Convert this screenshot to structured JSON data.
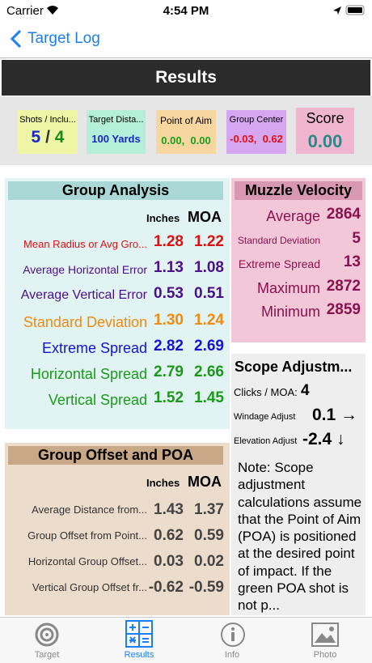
{
  "status_bar": {
    "carrier": "Carrier",
    "time": "4:54 PM"
  },
  "nav": {
    "back": "Target Log"
  },
  "header": {
    "title": "Results"
  },
  "summary": {
    "shots": {
      "label": "Shots / Inclu...",
      "shots": "5",
      "separator": "/",
      "included": "4"
    },
    "distance": {
      "label": "Target Dista...",
      "value": "100 Yards"
    },
    "point_of_aim": {
      "label": "Point of Aim",
      "value": "0.00,  0.00"
    },
    "group_center": {
      "label": "Group Center",
      "value": "-0.03,  0.62"
    },
    "score": {
      "label": "Score",
      "value": "0.00"
    }
  },
  "group_analysis": {
    "title": "Group Analysis",
    "unit_inches": "Inches",
    "unit_moa": "MOA",
    "rows": [
      {
        "label": "Mean Radius or Avg Gro...",
        "inches": "1.28",
        "moa": "1.22"
      },
      {
        "label": "Average Horizontal Error",
        "inches": "1.13",
        "moa": "1.08"
      },
      {
        "label": "Average Vertical Error",
        "inches": "0.53",
        "moa": "0.51"
      },
      {
        "label": "Standard Deviation",
        "inches": "1.30",
        "moa": "1.24"
      },
      {
        "label": "Extreme Spread",
        "inches": "2.82",
        "moa": "2.69"
      },
      {
        "label": "Horizontal Spread",
        "inches": "2.79",
        "moa": "2.66"
      },
      {
        "label": "Vertical Spread",
        "inches": "1.52",
        "moa": "1.45"
      }
    ]
  },
  "muzzle_velocity": {
    "title": "Muzzle Velocity",
    "rows": [
      {
        "label": "Average",
        "value": "2864"
      },
      {
        "label": "Standard Deviation",
        "value": "5"
      },
      {
        "label": "Extreme Spread",
        "value": "13"
      },
      {
        "label": "Maximum",
        "value": "2872"
      },
      {
        "label": "Minimum",
        "value": "2859"
      }
    ]
  },
  "scope_adjustment": {
    "title": "Scope Adjustm...",
    "clicks_label": "Clicks / MOA:",
    "clicks": "4",
    "windage_label": "Windage Adjust",
    "windage": "0.1 →",
    "elevation_label": "Elevation Adjust",
    "elevation": "-2.4 ↓",
    "note": "Note: Scope adjustment calculations assume that the Point of Aim (POA) is positioned at the desired point of impact. If the green POA shot is not p..."
  },
  "group_offset": {
    "title": "Group Offset and POA",
    "unit_inches": "Inches",
    "unit_moa": "MOA",
    "rows": [
      {
        "label": "Average Distance from...",
        "inches": "1.43",
        "moa": "1.37"
      },
      {
        "label": "Group Offset from Point...",
        "inches": "0.62",
        "moa": "0.59"
      },
      {
        "label": "Horizontal Group Offset...",
        "inches": "0.03",
        "moa": "0.02"
      },
      {
        "label": "Vertical Group Offset fr...",
        "inches": "-0.62",
        "moa": "-0.59"
      }
    ]
  },
  "tab_bar": {
    "tabs": [
      "Target",
      "Results",
      "Info",
      "Photo"
    ]
  }
}
